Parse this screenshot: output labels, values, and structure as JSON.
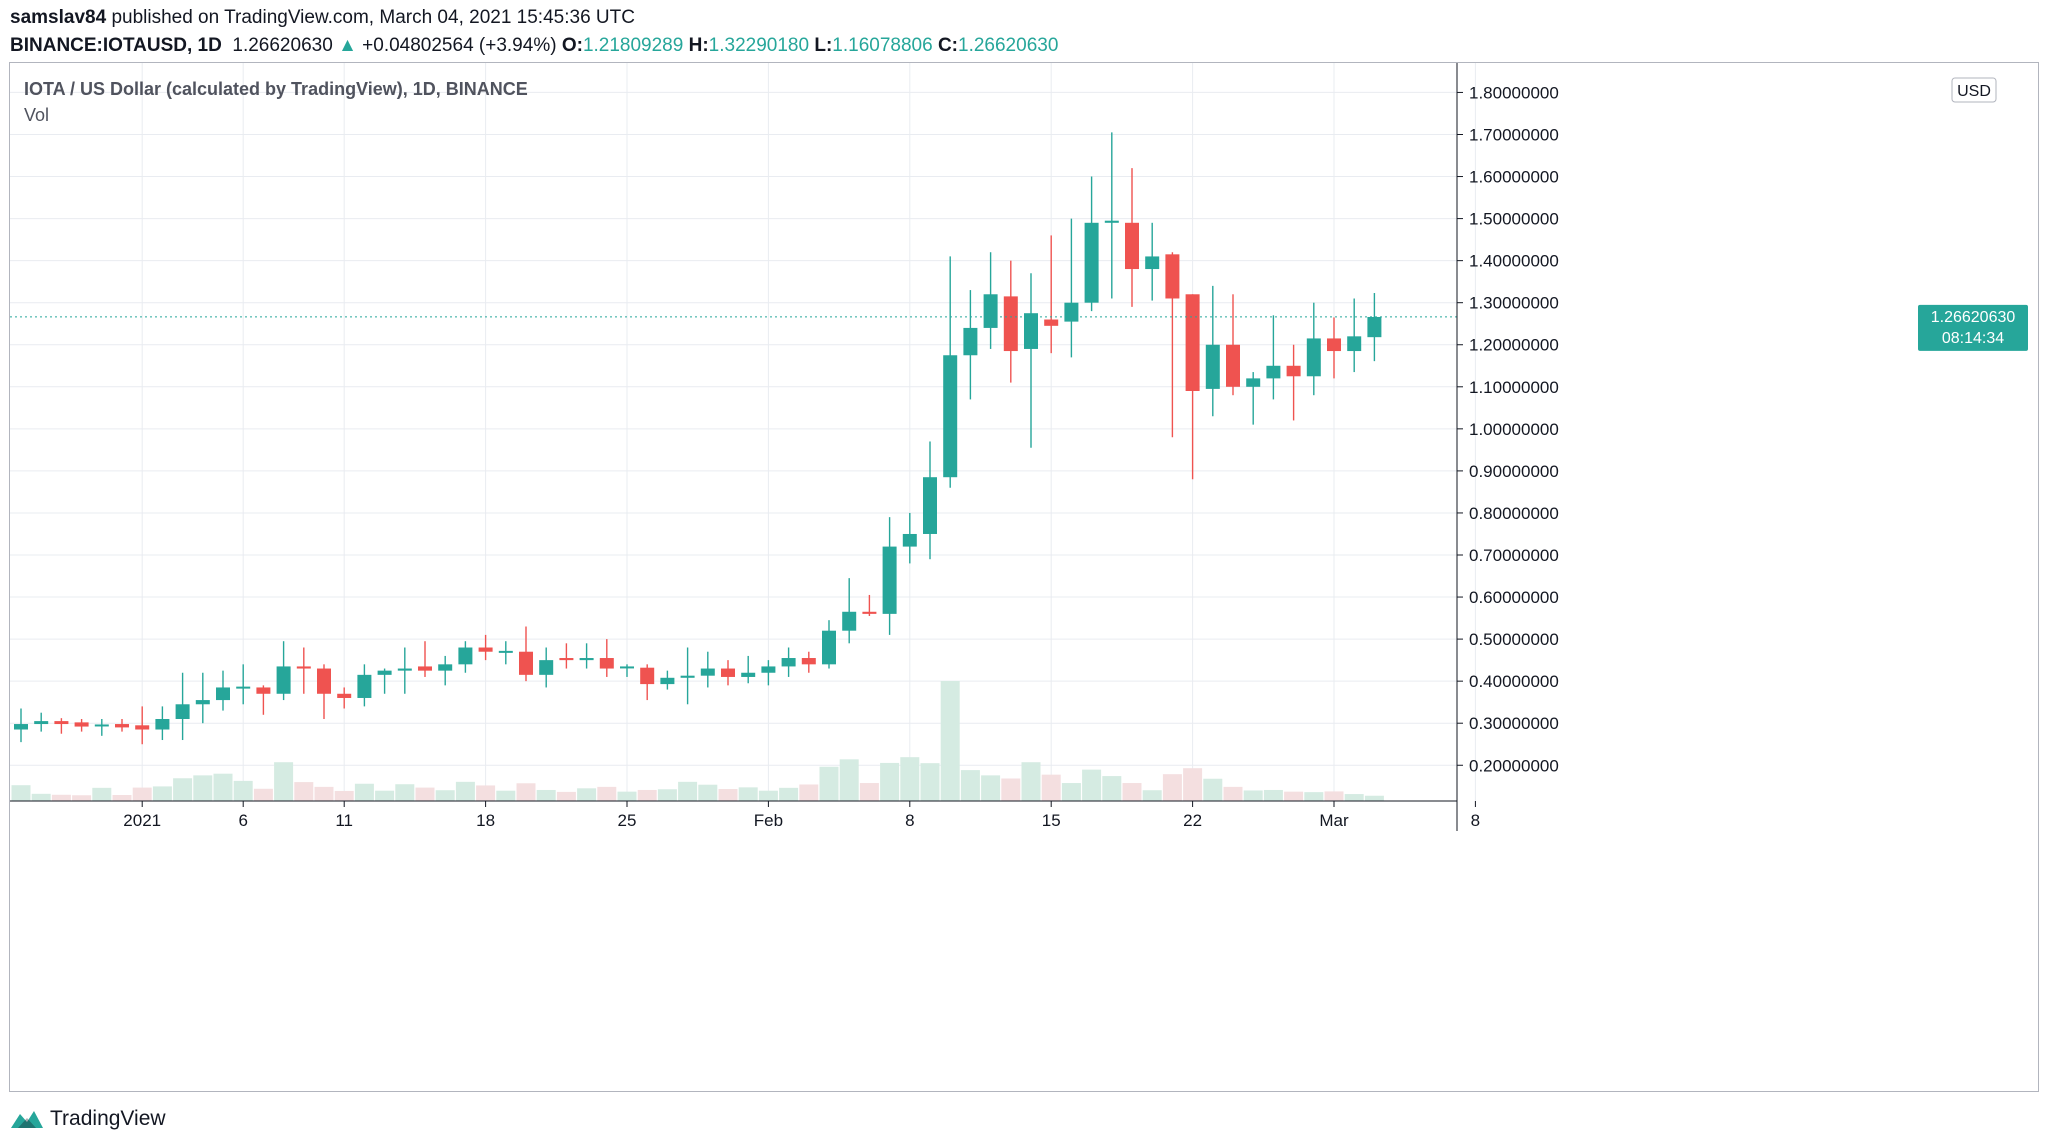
{
  "header": {
    "user": "samslav84",
    "published_text": "published on TradingView.com, March 04, 2021 15:45:36 UTC",
    "symbol": "BINANCE:IOTAUSD, 1D",
    "last": "1.26620630",
    "change_arrow": "▲",
    "change": "+0.04802564 (+3.94%)",
    "o_label": "O:",
    "o_value": "1.21809289",
    "h_label": "H:",
    "h_value": "1.32290180",
    "l_label": "L:",
    "l_value": "1.16078806",
    "c_label": "C:",
    "c_value": "1.26620630"
  },
  "footer": {
    "brand": "TradingView",
    "logo_icon": "tradingview-logo-icon"
  },
  "colors": {
    "up": "#26a69a",
    "down": "#ef5350",
    "vol_up": "#d5ebe2",
    "vol_down": "#f4dfe0",
    "grid": "#e9ecf1",
    "price_line": "#26a69a"
  },
  "chart_data": {
    "type": "candlestick",
    "title": "IOTA / US Dollar (calculated by TradingView), 1D, BINANCE",
    "volume_label": "Vol",
    "currency_label": "USD",
    "ylim": [
      0.115,
      1.87
    ],
    "y_ticks": [
      "0.20000000",
      "0.30000000",
      "0.40000000",
      "0.50000000",
      "0.60000000",
      "0.70000000",
      "0.80000000",
      "0.90000000",
      "1.00000000",
      "1.10000000",
      "1.20000000",
      "1.30000000",
      "1.40000000",
      "1.50000000",
      "1.60000000",
      "1.70000000",
      "1.80000000"
    ],
    "x_ticks": [
      {
        "label": "2021",
        "date": "2021-01-01"
      },
      {
        "label": "6",
        "date": "2021-01-06"
      },
      {
        "label": "11",
        "date": "2021-01-11"
      },
      {
        "label": "18",
        "date": "2021-01-18"
      },
      {
        "label": "25",
        "date": "2021-01-25"
      },
      {
        "label": "Feb",
        "date": "2021-02-01"
      },
      {
        "label": "8",
        "date": "2021-02-08"
      },
      {
        "label": "15",
        "date": "2021-02-15"
      },
      {
        "label": "22",
        "date": "2021-02-22"
      },
      {
        "label": "Mar",
        "date": "2021-03-01"
      },
      {
        "label": "8",
        "date": "2021-03-08"
      }
    ],
    "last_price_label": "1.26620630",
    "countdown_label": "08:14:34",
    "last_price": 1.2662063,
    "candles": [
      {
        "date": "2020-12-26",
        "open": 0.285,
        "high": 0.335,
        "low": 0.255,
        "close": 0.298,
        "volume": 66
      },
      {
        "date": "2020-12-27",
        "open": 0.298,
        "high": 0.325,
        "low": 0.28,
        "close": 0.305,
        "volume": 30
      },
      {
        "date": "2020-12-28",
        "open": 0.305,
        "high": 0.312,
        "low": 0.275,
        "close": 0.298,
        "volume": 26
      },
      {
        "date": "2020-12-29",
        "open": 0.302,
        "high": 0.31,
        "low": 0.28,
        "close": 0.292,
        "volume": 24
      },
      {
        "date": "2020-12-30",
        "open": 0.295,
        "high": 0.31,
        "low": 0.27,
        "close": 0.297,
        "volume": 55
      },
      {
        "date": "2020-12-31",
        "open": 0.298,
        "high": 0.31,
        "low": 0.28,
        "close": 0.29,
        "volume": 25
      },
      {
        "date": "2021-01-01",
        "open": 0.295,
        "high": 0.34,
        "low": 0.25,
        "close": 0.285,
        "volume": 56
      },
      {
        "date": "2021-01-02",
        "open": 0.285,
        "high": 0.34,
        "low": 0.26,
        "close": 0.31,
        "volume": 61
      },
      {
        "date": "2021-01-03",
        "open": 0.31,
        "high": 0.42,
        "low": 0.26,
        "close": 0.345,
        "volume": 95
      },
      {
        "date": "2021-01-04",
        "open": 0.345,
        "high": 0.42,
        "low": 0.3,
        "close": 0.355,
        "volume": 107
      },
      {
        "date": "2021-01-05",
        "open": 0.355,
        "high": 0.425,
        "low": 0.33,
        "close": 0.385,
        "volume": 114
      },
      {
        "date": "2021-01-06",
        "open": 0.385,
        "high": 0.44,
        "low": 0.345,
        "close": 0.387,
        "volume": 84
      },
      {
        "date": "2021-01-07",
        "open": 0.385,
        "high": 0.39,
        "low": 0.32,
        "close": 0.37,
        "volume": 51
      },
      {
        "date": "2021-01-08",
        "open": 0.37,
        "high": 0.495,
        "low": 0.355,
        "close": 0.435,
        "volume": 162
      },
      {
        "date": "2021-01-09",
        "open": 0.435,
        "high": 0.48,
        "low": 0.37,
        "close": 0.43,
        "volume": 79
      },
      {
        "date": "2021-01-10",
        "open": 0.43,
        "high": 0.44,
        "low": 0.31,
        "close": 0.37,
        "volume": 59
      },
      {
        "date": "2021-01-11",
        "open": 0.37,
        "high": 0.385,
        "low": 0.335,
        "close": 0.36,
        "volume": 42
      },
      {
        "date": "2021-01-12",
        "open": 0.36,
        "high": 0.44,
        "low": 0.34,
        "close": 0.415,
        "volume": 72
      },
      {
        "date": "2021-01-13",
        "open": 0.415,
        "high": 0.43,
        "low": 0.37,
        "close": 0.425,
        "volume": 43
      },
      {
        "date": "2021-01-14",
        "open": 0.425,
        "high": 0.48,
        "low": 0.37,
        "close": 0.43,
        "volume": 70
      },
      {
        "date": "2021-01-15",
        "open": 0.435,
        "high": 0.495,
        "low": 0.41,
        "close": 0.425,
        "volume": 56
      },
      {
        "date": "2021-01-16",
        "open": 0.425,
        "high": 0.46,
        "low": 0.39,
        "close": 0.44,
        "volume": 45
      },
      {
        "date": "2021-01-17",
        "open": 0.44,
        "high": 0.495,
        "low": 0.42,
        "close": 0.48,
        "volume": 80
      },
      {
        "date": "2021-01-18",
        "open": 0.48,
        "high": 0.51,
        "low": 0.45,
        "close": 0.47,
        "volume": 65
      },
      {
        "date": "2021-01-19",
        "open": 0.472,
        "high": 0.495,
        "low": 0.44,
        "close": 0.472,
        "volume": 43
      },
      {
        "date": "2021-01-20",
        "open": 0.47,
        "high": 0.53,
        "low": 0.4,
        "close": 0.415,
        "volume": 74
      },
      {
        "date": "2021-01-21",
        "open": 0.415,
        "high": 0.48,
        "low": 0.385,
        "close": 0.45,
        "volume": 46
      },
      {
        "date": "2021-01-22",
        "open": 0.455,
        "high": 0.49,
        "low": 0.43,
        "close": 0.45,
        "volume": 38
      },
      {
        "date": "2021-01-23",
        "open": 0.45,
        "high": 0.49,
        "low": 0.43,
        "close": 0.455,
        "volume": 53
      },
      {
        "date": "2021-01-24",
        "open": 0.455,
        "high": 0.5,
        "low": 0.41,
        "close": 0.43,
        "volume": 59
      },
      {
        "date": "2021-01-25",
        "open": 0.435,
        "high": 0.44,
        "low": 0.41,
        "close": 0.435,
        "volume": 39
      },
      {
        "date": "2021-01-26",
        "open": 0.432,
        "high": 0.44,
        "low": 0.355,
        "close": 0.393,
        "volume": 46
      },
      {
        "date": "2021-01-27",
        "open": 0.393,
        "high": 0.425,
        "low": 0.38,
        "close": 0.408,
        "volume": 49
      },
      {
        "date": "2021-01-28",
        "open": 0.408,
        "high": 0.48,
        "low": 0.345,
        "close": 0.413,
        "volume": 80
      },
      {
        "date": "2021-01-29",
        "open": 0.413,
        "high": 0.47,
        "low": 0.385,
        "close": 0.43,
        "volume": 68
      },
      {
        "date": "2021-01-30",
        "open": 0.43,
        "high": 0.45,
        "low": 0.39,
        "close": 0.41,
        "volume": 50
      },
      {
        "date": "2021-01-31",
        "open": 0.41,
        "high": 0.46,
        "low": 0.395,
        "close": 0.42,
        "volume": 57
      },
      {
        "date": "2021-02-01",
        "open": 0.42,
        "high": 0.45,
        "low": 0.39,
        "close": 0.435,
        "volume": 43
      },
      {
        "date": "2021-02-02",
        "open": 0.435,
        "high": 0.48,
        "low": 0.41,
        "close": 0.455,
        "volume": 55
      },
      {
        "date": "2021-02-03",
        "open": 0.455,
        "high": 0.47,
        "low": 0.42,
        "close": 0.44,
        "volume": 69
      },
      {
        "date": "2021-02-04",
        "open": 0.44,
        "high": 0.545,
        "low": 0.43,
        "close": 0.52,
        "volume": 143
      },
      {
        "date": "2021-02-05",
        "open": 0.52,
        "high": 0.645,
        "low": 0.49,
        "close": 0.565,
        "volume": 174
      },
      {
        "date": "2021-02-06",
        "open": 0.565,
        "high": 0.605,
        "low": 0.555,
        "close": 0.56,
        "volume": 75
      },
      {
        "date": "2021-02-07",
        "open": 0.56,
        "high": 0.79,
        "low": 0.51,
        "close": 0.72,
        "volume": 159
      },
      {
        "date": "2021-02-08",
        "open": 0.72,
        "high": 0.8,
        "low": 0.68,
        "close": 0.75,
        "volume": 183
      },
      {
        "date": "2021-02-09",
        "open": 0.75,
        "high": 0.97,
        "low": 0.69,
        "close": 0.885,
        "volume": 158
      },
      {
        "date": "2021-02-10",
        "open": 0.885,
        "high": 1.41,
        "low": 0.86,
        "close": 1.175,
        "volume": 501
      },
      {
        "date": "2021-02-11",
        "open": 1.175,
        "high": 1.33,
        "low": 1.07,
        "close": 1.24,
        "volume": 129
      },
      {
        "date": "2021-02-12",
        "open": 1.24,
        "high": 1.42,
        "low": 1.19,
        "close": 1.32,
        "volume": 107
      },
      {
        "date": "2021-02-13",
        "open": 1.315,
        "high": 1.4,
        "low": 1.11,
        "close": 1.185,
        "volume": 94
      },
      {
        "date": "2021-02-14",
        "open": 1.19,
        "high": 1.37,
        "low": 0.955,
        "close": 1.275,
        "volume": 162
      },
      {
        "date": "2021-02-15",
        "open": 1.26,
        "high": 1.46,
        "low": 1.18,
        "close": 1.245,
        "volume": 110
      },
      {
        "date": "2021-02-16",
        "open": 1.255,
        "high": 1.5,
        "low": 1.17,
        "close": 1.3,
        "volume": 75
      },
      {
        "date": "2021-02-17",
        "open": 1.3,
        "high": 1.6,
        "low": 1.28,
        "close": 1.49,
        "volume": 131
      },
      {
        "date": "2021-02-18",
        "open": 1.49,
        "high": 1.705,
        "low": 1.31,
        "close": 1.495,
        "volume": 104
      },
      {
        "date": "2021-02-19",
        "open": 1.49,
        "high": 1.62,
        "low": 1.29,
        "close": 1.38,
        "volume": 75
      },
      {
        "date": "2021-02-20",
        "open": 1.38,
        "high": 1.49,
        "low": 1.305,
        "close": 1.41,
        "volume": 45
      },
      {
        "date": "2021-02-21",
        "open": 1.415,
        "high": 1.42,
        "low": 0.98,
        "close": 1.31,
        "volume": 112
      },
      {
        "date": "2021-02-22",
        "open": 1.32,
        "high": 1.32,
        "low": 0.88,
        "close": 1.09,
        "volume": 137
      },
      {
        "date": "2021-02-23",
        "open": 1.095,
        "high": 1.34,
        "low": 1.03,
        "close": 1.2,
        "volume": 93
      },
      {
        "date": "2021-02-24",
        "open": 1.2,
        "high": 1.32,
        "low": 1.08,
        "close": 1.1,
        "volume": 59
      },
      {
        "date": "2021-02-25",
        "open": 1.1,
        "high": 1.135,
        "low": 1.01,
        "close": 1.12,
        "volume": 44
      },
      {
        "date": "2021-02-26",
        "open": 1.12,
        "high": 1.27,
        "low": 1.07,
        "close": 1.15,
        "volume": 46
      },
      {
        "date": "2021-02-27",
        "open": 1.15,
        "high": 1.2,
        "low": 1.02,
        "close": 1.125,
        "volume": 39
      },
      {
        "date": "2021-02-28",
        "open": 1.125,
        "high": 1.3,
        "low": 1.08,
        "close": 1.215,
        "volume": 37
      },
      {
        "date": "2021-03-01",
        "open": 1.215,
        "high": 1.265,
        "low": 1.12,
        "close": 1.185,
        "volume": 40
      },
      {
        "date": "2021-03-02",
        "open": 1.185,
        "high": 1.31,
        "low": 1.135,
        "close": 1.22,
        "volume": 29
      },
      {
        "date": "2021-03-03",
        "open": 1.218,
        "high": 1.323,
        "low": 1.161,
        "close": 1.266,
        "volume": 22
      }
    ]
  }
}
